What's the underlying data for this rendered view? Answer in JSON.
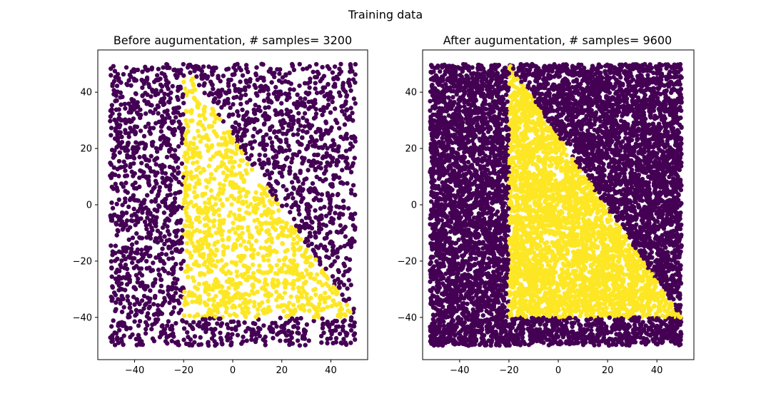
{
  "figure": {
    "title": "Training data"
  },
  "chart_data": [
    {
      "type": "scatter",
      "title": "Before augumentation, # samples= 3200",
      "xlim": [
        -55,
        55
      ],
      "ylim": [
        -55,
        55
      ],
      "xticks": [
        -40,
        -20,
        0,
        20,
        40
      ],
      "yticks": [
        -40,
        -20,
        0,
        20,
        40
      ],
      "grid": false,
      "legend": "none",
      "samples": 3200,
      "classes": [
        {
          "label": 0,
          "color": "#440154",
          "region": "outside triangle"
        },
        {
          "label": 1,
          "color": "#fde725",
          "region": "triangle with vertices (-20,-40), (-20,50), (50,-40)"
        }
      ],
      "point_extent": {
        "x": [
          -50,
          50
        ],
        "y": [
          -50,
          50
        ]
      },
      "class1_polygon": [
        [
          -20,
          -40
        ],
        [
          -20,
          50
        ],
        [
          50,
          -40
        ]
      ],
      "sample_points": [
        [
          -45,
          40
        ],
        [
          -30,
          10
        ],
        [
          -10,
          -20
        ],
        [
          10,
          5
        ],
        [
          30,
          -30
        ],
        [
          25,
          40
        ],
        [
          0,
          -45
        ],
        [
          -40,
          -40
        ]
      ]
    },
    {
      "type": "scatter",
      "title": "After augumentation, # samples= 9600",
      "xlim": [
        -55,
        55
      ],
      "ylim": [
        -55,
        55
      ],
      "xticks": [
        -40,
        -20,
        0,
        20,
        40
      ],
      "yticks": [
        -40,
        -20,
        0,
        20,
        40
      ],
      "grid": false,
      "legend": "none",
      "samples": 9600,
      "classes": [
        {
          "label": 0,
          "color": "#440154",
          "region": "outside triangle"
        },
        {
          "label": 1,
          "color": "#fde725",
          "region": "triangle with vertices (-20,-40), (-20,50), (50,-40)"
        }
      ],
      "point_extent": {
        "x": [
          -52,
          50
        ],
        "y": [
          -50,
          50
        ]
      },
      "class1_polygon": [
        [
          -20,
          -40
        ],
        [
          -20,
          50
        ],
        [
          50,
          -40
        ]
      ],
      "sample_points": [
        [
          -45,
          40
        ],
        [
          -30,
          10
        ],
        [
          -10,
          -20
        ],
        [
          10,
          5
        ],
        [
          30,
          -30
        ],
        [
          25,
          40
        ],
        [
          0,
          -45
        ],
        [
          -40,
          -40
        ]
      ]
    }
  ]
}
